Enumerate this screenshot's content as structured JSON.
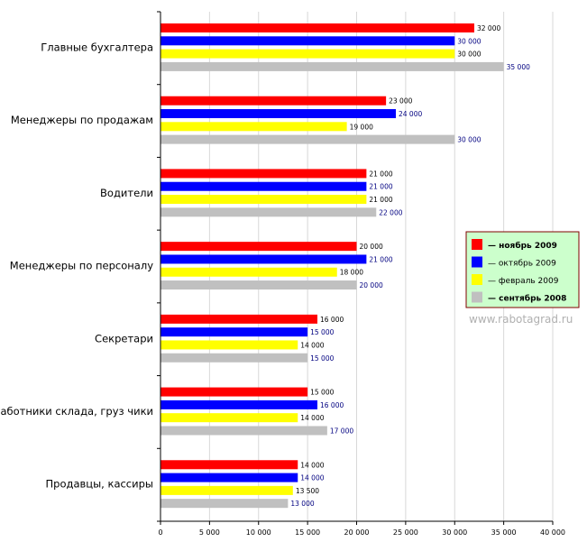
{
  "chart_data": {
    "type": "bar",
    "orientation": "horizontal",
    "categories": [
      "Главные бухгалтера",
      "Менеджеры по продажам",
      "Водители",
      "Менеджеры по персоналу",
      "Секретари",
      "Работники склада, груз чики",
      "Продавцы, кассиры"
    ],
    "series": [
      {
        "name": "— ноябрь 2009",
        "color": "#ff0000",
        "label_color": "#000000",
        "bold": true,
        "values": [
          32000,
          23000,
          21000,
          20000,
          16000,
          15000,
          14000
        ],
        "value_labels": [
          "32 000",
          "23 000",
          "21 000",
          "20 000",
          "16 000",
          "15 000",
          "14 000"
        ]
      },
      {
        "name": "— октябрь 2009",
        "color": "#0000ff",
        "label_color": "#000080",
        "bold": false,
        "values": [
          30000,
          24000,
          21000,
          21000,
          15000,
          16000,
          14000
        ],
        "value_labels": [
          "30 000",
          "24 000",
          "21 000",
          "21 000",
          "15 000",
          "16 000",
          "14 000"
        ]
      },
      {
        "name": "— февраль 2009",
        "color": "#ffff00",
        "label_color": "#000000",
        "bold": false,
        "values": [
          30000,
          19000,
          21000,
          18000,
          14000,
          14000,
          13500
        ],
        "value_labels": [
          "30 000",
          "19 000",
          "21 000",
          "18 000",
          "14 000",
          "14 000",
          "13 500"
        ]
      },
      {
        "name": "— сентябрь 2008",
        "color": "#c0c0c0",
        "label_color": "#000080",
        "bold": true,
        "values": [
          35000,
          30000,
          22000,
          20000,
          15000,
          17000,
          13000
        ],
        "value_labels": [
          "35 000",
          "30 000",
          "22 000",
          "20 000",
          "15 000",
          "17 000",
          "13 000"
        ]
      }
    ],
    "x_ticks": [
      0,
      5000,
      10000,
      15000,
      20000,
      25000,
      30000,
      35000,
      40000
    ],
    "x_tick_labels": [
      "0",
      "5 000",
      "10 000",
      "15 000",
      "20 000",
      "25 000",
      "30 000",
      "35 000",
      "40 000"
    ],
    "xlim": [
      0,
      40000
    ],
    "grid": true,
    "legend_position": "right",
    "legend_background": "#ccffcc",
    "legend_border": "#800000"
  },
  "watermark": "www.rabotagrad.ru"
}
